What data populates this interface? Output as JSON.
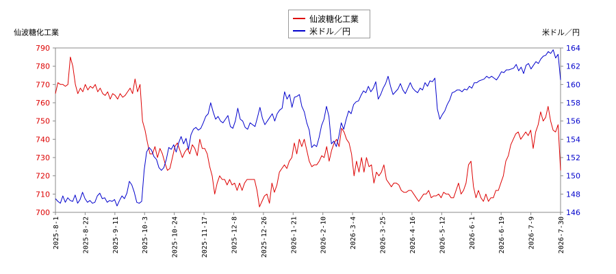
{
  "chart_data": {
    "type": "line",
    "legend_position": "top-center",
    "grid": false,
    "left_axis_title": "仙波糖化工業",
    "right_axis_title": "米ドル／円",
    "x_tick_labels": [
      "2025-8-1",
      "2025-8-22",
      "2025-9-11",
      "2025-10-3",
      "2025-10-24",
      "2025-11-17",
      "2025-12-8",
      "2025-12-26",
      "2026-1-21",
      "2026-2-10",
      "2026-3-4",
      "2026-3-25",
      "2026-4-16",
      "2026-5-12",
      "2026-6-1",
      "2026-6-19",
      "2026-7-9",
      "2026-7-30"
    ],
    "y_left": {
      "min": 700,
      "max": 790,
      "ticks": [
        700,
        710,
        720,
        730,
        740,
        750,
        760,
        770,
        780,
        790
      ]
    },
    "y_right": {
      "min": 146,
      "max": 164,
      "ticks": [
        146,
        148,
        150,
        152,
        154,
        156,
        158,
        160,
        162,
        164
      ]
    },
    "series": [
      {
        "name": "仙波糖化工業",
        "color": "#dd0000",
        "axis": "left",
        "values": [
          765,
          771,
          770,
          770,
          769,
          770,
          785,
          780,
          770,
          765,
          768,
          766,
          770,
          767,
          769,
          768,
          770,
          766,
          768,
          765,
          764,
          766,
          762,
          765,
          764,
          762,
          765,
          763,
          764,
          766,
          768,
          765,
          773,
          766,
          770,
          750,
          745,
          738,
          732,
          732,
          736,
          730,
          735,
          732,
          727,
          723,
          724,
          730,
          736,
          738,
          734,
          730,
          733,
          735,
          732,
          737,
          735,
          731,
          740,
          735,
          735,
          732,
          725,
          720,
          710,
          716,
          720,
          718,
          718,
          715,
          718,
          715,
          716,
          712,
          716,
          712,
          716,
          718,
          718,
          718,
          718,
          712,
          703,
          706,
          709,
          710,
          705,
          716,
          711,
          715,
          722,
          724,
          726,
          724,
          728,
          730,
          738,
          732,
          740,
          736,
          740,
          734,
          728,
          725,
          726,
          726,
          728,
          731,
          730,
          736,
          728,
          734,
          738,
          740,
          736,
          746,
          744,
          740,
          738,
          732,
          720,
          728,
          722,
          730,
          722,
          730,
          725,
          726,
          716,
          722,
          720,
          722,
          726,
          718,
          716,
          714,
          716,
          716,
          715,
          712,
          711,
          711,
          712,
          712,
          710,
          708,
          706,
          708,
          710,
          710,
          712,
          708,
          709,
          709,
          710,
          708,
          711,
          710,
          710,
          708,
          708,
          712,
          716,
          710,
          712,
          716,
          726,
          728,
          714,
          708,
          712,
          708,
          706,
          710,
          706,
          708,
          708,
          712,
          712,
          716,
          720,
          728,
          731,
          737,
          740,
          743,
          744,
          740,
          742,
          744,
          742,
          745,
          735,
          744,
          748,
          755,
          750,
          752,
          758,
          750,
          745,
          744,
          748,
          723
        ]
      },
      {
        "name": "米ドル／円",
        "color": "#0000cc",
        "axis": "right",
        "values": [
          147.5,
          147.2,
          147.0,
          147.8,
          147.1,
          147.6,
          147.3,
          147.2,
          147.9,
          147.0,
          147.4,
          148.2,
          147.5,
          147.1,
          147.3,
          147.0,
          147.1,
          147.8,
          148.1,
          147.5,
          147.6,
          147.1,
          147.3,
          147.2,
          147.4,
          146.7,
          147.3,
          147.8,
          147.5,
          148.1,
          149.4,
          149.0,
          148.2,
          147.1,
          147.0,
          147.2,
          150.6,
          152.6,
          153.1,
          152.8,
          152.1,
          151.8,
          150.9,
          150.6,
          150.9,
          151.8,
          153.1,
          152.9,
          153.4,
          152.6,
          153.6,
          154.3,
          153.5,
          154.1,
          152.9,
          154.5,
          155.1,
          155.3,
          155.0,
          155.2,
          155.8,
          156.5,
          156.8,
          158.0,
          157.0,
          156.2,
          156.5,
          156.0,
          155.8,
          156.2,
          156.6,
          155.4,
          155.2,
          156.0,
          157.4,
          156.2,
          156.0,
          155.3,
          155.1,
          155.8,
          155.6,
          155.4,
          156.4,
          157.5,
          156.3,
          155.6,
          156.0,
          156.4,
          156.8,
          156.0,
          156.8,
          157.2,
          157.4,
          159.2,
          158.4,
          158.9,
          157.5,
          158.6,
          158.7,
          158.9,
          157.6,
          157.0,
          155.8,
          155.0,
          153.1,
          153.4,
          153.2,
          154.2,
          155.5,
          156.2,
          157.6,
          156.5,
          153.5,
          153.8,
          153.2,
          154.3,
          155.8,
          155.1,
          156.2,
          157.1,
          156.8,
          157.8,
          158.1,
          158.2,
          158.8,
          159.3,
          159.1,
          159.8,
          159.2,
          159.6,
          160.3,
          158.4,
          158.9,
          159.6,
          160.1,
          160.9,
          159.8,
          158.9,
          159.2,
          159.5,
          160.1,
          159.4,
          159.0,
          159.6,
          160.2,
          159.6,
          159.3,
          159.1,
          159.6,
          159.4,
          160.2,
          159.8,
          160.4,
          160.3,
          160.7,
          157.3,
          156.2,
          156.7,
          157.1,
          157.8,
          158.3,
          159.1,
          159.2,
          159.4,
          159.4,
          159.2,
          159.5,
          159.4,
          159.8,
          159.6,
          160.2,
          160.2,
          160.4,
          160.5,
          160.6,
          160.9,
          160.7,
          160.9,
          160.7,
          160.5,
          160.9,
          161.4,
          161.3,
          161.6,
          161.6,
          161.7,
          161.8,
          162.2,
          161.5,
          161.9,
          161.2,
          162.1,
          162.3,
          161.7,
          162.1,
          162.5,
          162.3,
          162.8,
          163.1,
          163.2,
          163.6,
          163.4,
          163.8,
          162.9,
          163.3,
          160.5
        ]
      }
    ]
  }
}
